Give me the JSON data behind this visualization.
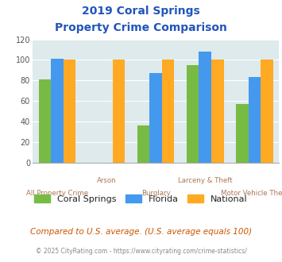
{
  "title_line1": "2019 Coral Springs",
  "title_line2": "Property Crime Comparison",
  "categories": [
    "All Property Crime",
    "Arson",
    "Burglary",
    "Larceny & Theft",
    "Motor Vehicle Theft"
  ],
  "series": {
    "Coral Springs": [
      81,
      null,
      36,
      95,
      57
    ],
    "Florida": [
      101,
      null,
      87,
      108,
      83
    ],
    "National": [
      100,
      100,
      100,
      100,
      100
    ]
  },
  "colors": {
    "Coral Springs": "#77bb44",
    "Florida": "#4499ee",
    "National": "#ffaa22"
  },
  "ylim": [
    0,
    120
  ],
  "yticks": [
    0,
    20,
    40,
    60,
    80,
    100,
    120
  ],
  "plot_bg": "#deeaec",
  "title_color": "#2255bb",
  "xlabel_color": "#aa7755",
  "footnote1": "Compared to U.S. average. (U.S. average equals 100)",
  "footnote2": "© 2025 CityRating.com - https://www.cityrating.com/crime-statistics/",
  "footnote1_color": "#cc5500",
  "footnote2_color": "#888888",
  "bar_width": 0.25,
  "group_positions": [
    0,
    1,
    2,
    3,
    4
  ]
}
